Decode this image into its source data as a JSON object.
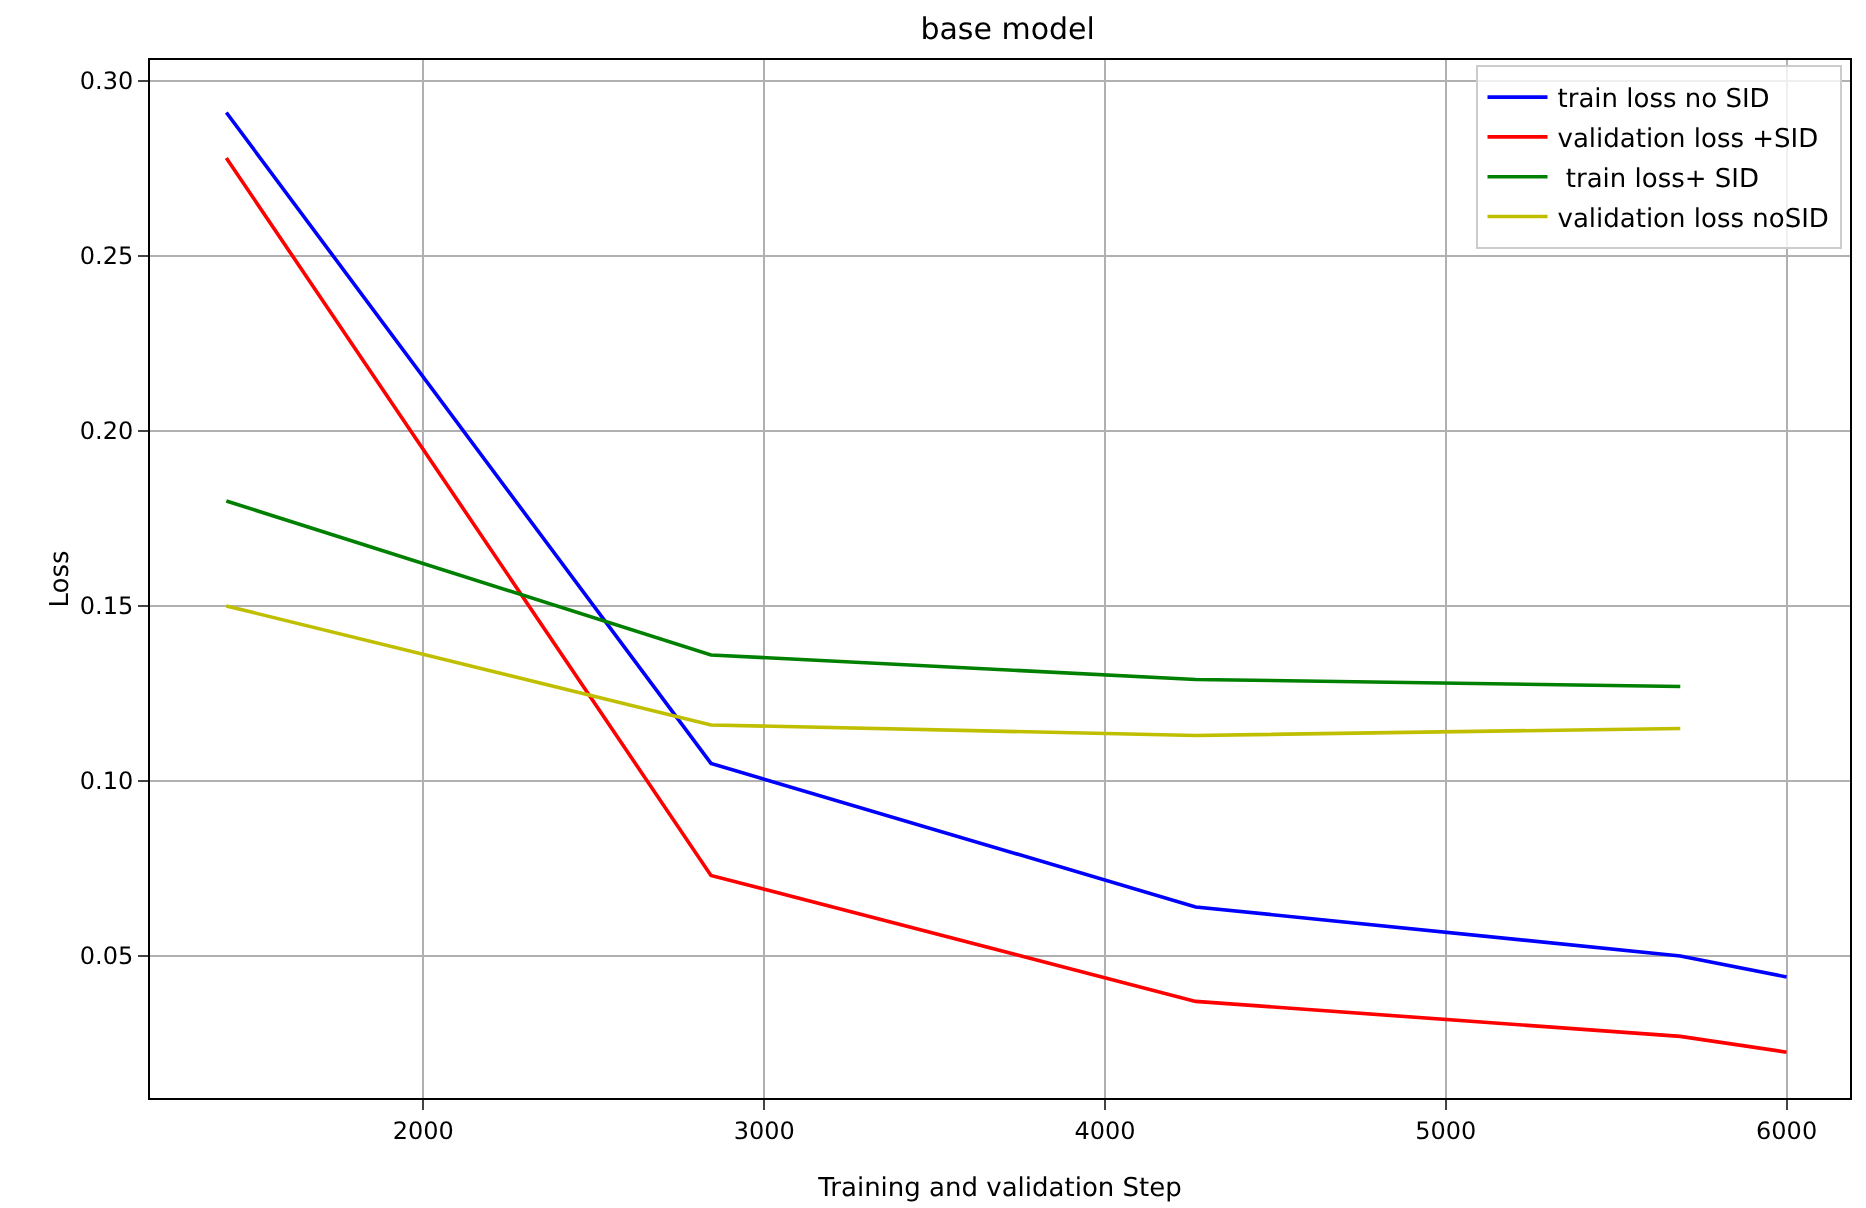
{
  "chart_data": {
    "type": "line",
    "title": "base model",
    "xlabel": "Training and validation Step",
    "ylabel": "Loss",
    "x": [
      1422,
      2844,
      4266,
      5688,
      6000
    ],
    "series": [
      {
        "name": "train loss no SID",
        "color": "#0000ff",
        "values": [
          0.291,
          0.105,
          0.064,
          0.05,
          0.044
        ]
      },
      {
        "name": "validation loss +SID",
        "color": "#ff0000",
        "values": [
          0.278,
          0.073,
          0.037,
          0.027,
          0.0225
        ]
      },
      {
        "name": " train loss+ SID",
        "color": "#008000",
        "values": [
          0.18,
          0.136,
          0.129,
          0.127,
          null
        ]
      },
      {
        "name": "validation loss noSID",
        "color": "#bfbf00",
        "values": [
          0.15,
          0.116,
          0.113,
          0.115,
          null
        ]
      }
    ],
    "xlim": [
      1198,
      6186
    ],
    "xticks": [
      2000,
      3000,
      4000,
      5000,
      6000
    ],
    "ylim": [
      0.0094,
      0.306
    ],
    "yticks": [
      {
        "value": 0.05,
        "label": "0.05"
      },
      {
        "value": 0.1,
        "label": "0.10"
      },
      {
        "value": 0.15,
        "label": "0.15"
      },
      {
        "value": 0.2,
        "label": "0.20"
      },
      {
        "value": 0.25,
        "label": "0.25"
      },
      {
        "value": 0.3,
        "label": "0.30"
      }
    ],
    "grid": true,
    "legend": "top right",
    "line_style": "solid",
    "marker": "none"
  }
}
